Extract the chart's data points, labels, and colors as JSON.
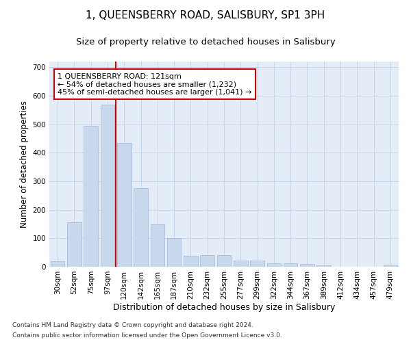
{
  "title1": "1, QUEENSBERRY ROAD, SALISBURY, SP1 3PH",
  "title2": "Size of property relative to detached houses in Salisbury",
  "xlabel": "Distribution of detached houses by size in Salisbury",
  "ylabel": "Number of detached properties",
  "categories": [
    "30sqm",
    "52sqm",
    "75sqm",
    "97sqm",
    "120sqm",
    "142sqm",
    "165sqm",
    "187sqm",
    "210sqm",
    "232sqm",
    "255sqm",
    "277sqm",
    "299sqm",
    "322sqm",
    "344sqm",
    "367sqm",
    "389sqm",
    "412sqm",
    "434sqm",
    "457sqm",
    "479sqm"
  ],
  "values": [
    20,
    155,
    495,
    570,
    435,
    275,
    150,
    100,
    38,
    42,
    42,
    22,
    22,
    12,
    12,
    10,
    5,
    0,
    0,
    0,
    8
  ],
  "bar_color": "#c9d9ed",
  "bar_edge_color": "#a8bfd8",
  "grid_color": "#c8d4e8",
  "background_color": "#e4ecf7",
  "vline_x": 3.5,
  "vline_color": "#cc0000",
  "annotation_text": "1 QUEENSBERRY ROAD: 121sqm\n← 54% of detached houses are smaller (1,232)\n45% of semi-detached houses are larger (1,041) →",
  "annotation_box_facecolor": "#ffffff",
  "annotation_box_edgecolor": "#cc0000",
  "footer1": "Contains HM Land Registry data © Crown copyright and database right 2024.",
  "footer2": "Contains public sector information licensed under the Open Government Licence v3.0.",
  "ylim": [
    0,
    720
  ],
  "yticks": [
    0,
    100,
    200,
    300,
    400,
    500,
    600,
    700
  ],
  "title1_fontsize": 11,
  "title2_fontsize": 9.5,
  "ylabel_fontsize": 8.5,
  "xlabel_fontsize": 9,
  "tick_fontsize": 7.5,
  "annotation_fontsize": 8,
  "footer_fontsize": 6.5
}
